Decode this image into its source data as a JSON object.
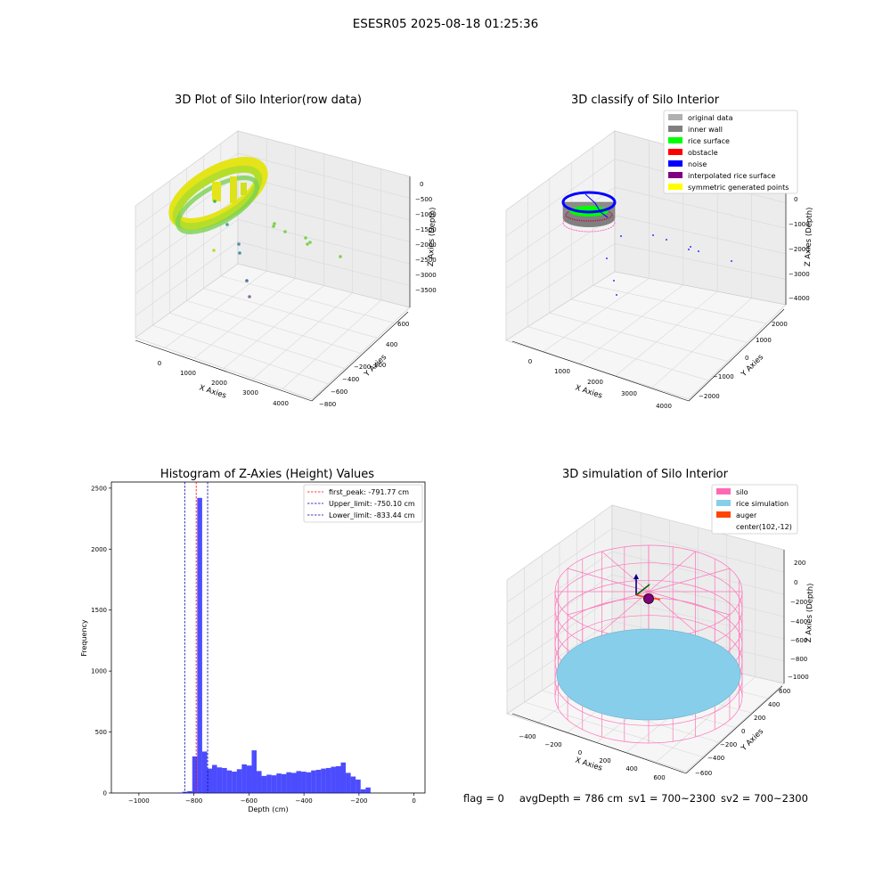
{
  "suptitle": "ESESR05 2025-08-18 01:25:36",
  "footer": {
    "flag": "flag = 0",
    "avg_depth": "avgDepth = 786 cm",
    "sv1": "sv1 = 700~2300",
    "sv2": "sv2 = 700~2300"
  },
  "colors": {
    "histogram_bar": "#0000ff",
    "first_peak_line": "#ff0000",
    "limit_lines": "#0000aa",
    "silo": "#ff69b4",
    "rice_simulation": "#87ceeb",
    "auger": "#ff4500",
    "rice_surface": "#00ff00",
    "noise": "#0000ff",
    "viridis_yellow": "#e5e419",
    "viridis_green": "#7ad151"
  },
  "chart_data": [
    {
      "type": "scatter3d",
      "title": "3D Plot of Silo Interior(row data)",
      "xlabel": "X Axies",
      "ylabel": "Y Axies",
      "zlabel": "Z Axies (Depth)",
      "x_ticks": [
        "0",
        "1000",
        "2000",
        "3000",
        "4000"
      ],
      "y_ticks": [
        "600",
        "400",
        "200",
        "−200",
        "−400",
        "−600",
        "−800"
      ],
      "z_ticks": [
        "0",
        "−500",
        "−1000",
        "−1500",
        "−2000",
        "−2500",
        "−3000",
        "−3500"
      ],
      "colormap": "viridis",
      "grid": true
    },
    {
      "type": "scatter3d",
      "title": "3D classify of Silo Interior",
      "xlabel": "X Axies",
      "ylabel": "Y Axies",
      "zlabel": "Z Axies (Depth)",
      "x_ticks": [
        "0",
        "1000",
        "2000",
        "3000",
        "4000"
      ],
      "y_ticks": [
        "2000",
        "1000",
        "0",
        "−1000",
        "−2000"
      ],
      "z_ticks": [
        "0",
        "−1000",
        "−2000",
        "−3000",
        "−4000"
      ],
      "legend": [
        {
          "label": "original data",
          "color": "#b0b0b0"
        },
        {
          "label": "inner wall",
          "color": "#808080"
        },
        {
          "label": "rice surface",
          "color": "#00ff00"
        },
        {
          "label": "obstacle",
          "color": "#ff0000"
        },
        {
          "label": "noise",
          "color": "#0000ff"
        },
        {
          "label": "interpolated rice surface",
          "color": "#800080"
        },
        {
          "label": "symmetric generated points",
          "color": "#ffff00"
        }
      ],
      "legend_position": "top-right",
      "grid": true
    },
    {
      "type": "bar",
      "title": "Histogram of Z-Axies (Height) Values",
      "xlabel": "Depth (cm)",
      "ylabel": "Frequency",
      "xlim": [
        -1100,
        40
      ],
      "ylim": [
        0,
        2550
      ],
      "x_ticks": [
        -1000,
        -800,
        -600,
        -400,
        -200,
        0
      ],
      "x_tick_labels": [
        "−1000",
        "−800",
        "−600",
        "−400",
        "−200",
        "0"
      ],
      "y_ticks": [
        0,
        500,
        1000,
        1500,
        2000,
        2500
      ],
      "y_tick_labels": [
        "0",
        "500",
        "1000",
        "1500",
        "2000",
        "2500"
      ],
      "bin_start": -860,
      "bin_width": 18,
      "values": [
        3,
        10,
        15,
        300,
        2420,
        340,
        200,
        230,
        210,
        205,
        185,
        175,
        195,
        235,
        225,
        350,
        180,
        140,
        150,
        145,
        160,
        155,
        170,
        165,
        180,
        175,
        170,
        185,
        190,
        200,
        205,
        215,
        220,
        250,
        165,
        135,
        110,
        30,
        45
      ],
      "vlines": [
        {
          "x": -791.77,
          "style": "dashed",
          "color": "#ff0000",
          "label": "first_peak: -791.77 cm"
        },
        {
          "x": -750.1,
          "style": "dashed",
          "color": "#0000aa",
          "label": "Upper_limit: -750.10 cm"
        },
        {
          "x": -833.44,
          "style": "dashed",
          "color": "#0000aa",
          "label": "Lower_limit: -833.44 cm"
        }
      ],
      "legend_position": "top-right"
    },
    {
      "type": "surface3d",
      "title": "3D simulation of Silo Interior",
      "xlabel": "X Axies",
      "ylabel": "Y Axies",
      "zlabel": "Z Axies (Depth)",
      "x_ticks": [
        "−400",
        "−200",
        "0",
        "200",
        "400",
        "600"
      ],
      "y_ticks": [
        "600",
        "400",
        "200",
        "0",
        "−200",
        "−400",
        "−600"
      ],
      "z_ticks": [
        "200",
        "0",
        "−200",
        "−400",
        "−600",
        "−800",
        "−1000"
      ],
      "legend": [
        {
          "label": "silo",
          "color": "#ff69b4"
        },
        {
          "label": "rice simulation",
          "color": "#87ceeb"
        },
        {
          "label": "auger",
          "color": "#ff4500"
        },
        {
          "label": "center(102,-12)",
          "color": ""
        }
      ],
      "legend_position": "top-right",
      "grid": true
    }
  ]
}
